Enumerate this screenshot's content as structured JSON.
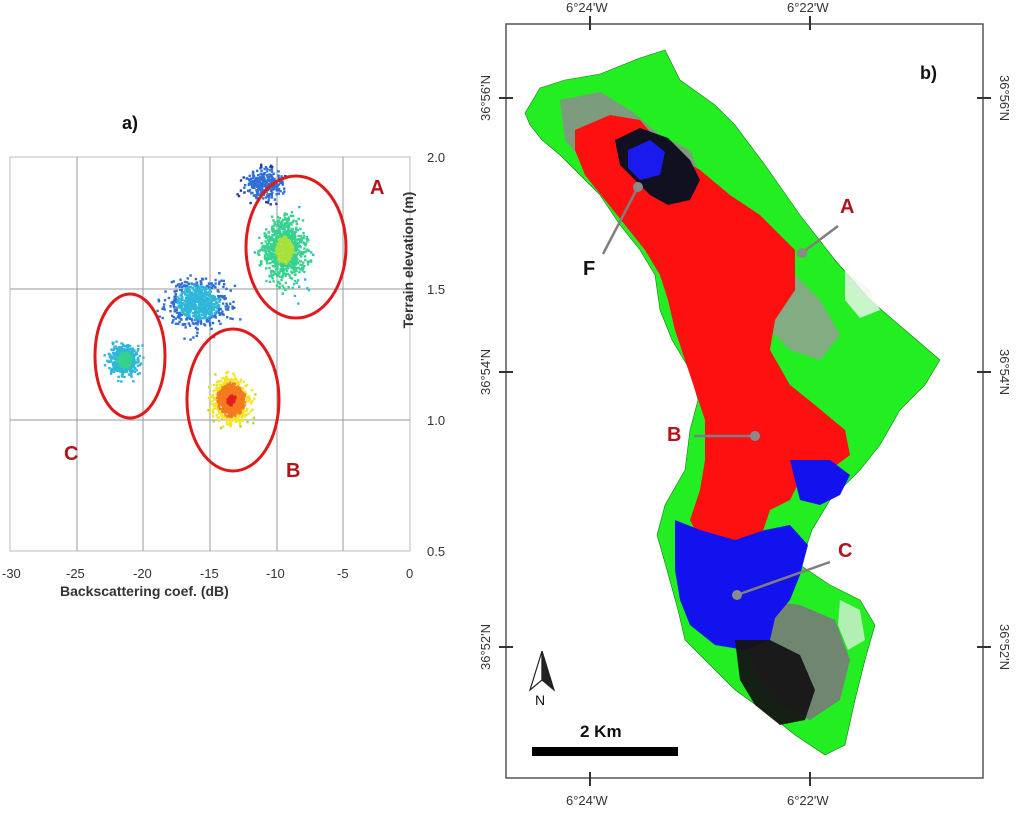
{
  "panel_a": {
    "label": "a)",
    "chart_data": {
      "type": "scatter",
      "title": "",
      "xlabel": "Backscattering coef. (dB)",
      "ylabel": "Terrain elevation (m)",
      "xlim": [
        -30,
        0
      ],
      "ylim": [
        0.5,
        2.0
      ],
      "x_ticks": [
        "-30",
        "-25",
        "-20",
        "-15",
        "-10",
        "-5",
        "0"
      ],
      "y_ticks": [
        "0.5",
        "1.0",
        "1.5",
        "2.0"
      ],
      "grid": true,
      "colormap": "density (blue → green → yellow → red)",
      "clusters": [
        {
          "label": "A",
          "center_x": -9.5,
          "center_y": 1.65
        },
        {
          "label": "B",
          "center_x": -13.5,
          "center_y": 1.08
        },
        {
          "label": "C",
          "center_x": -21.5,
          "center_y": 1.23
        }
      ]
    },
    "cluster_labels": {
      "A": "A",
      "B": "B",
      "C": "C"
    }
  },
  "panel_b": {
    "label": "b)",
    "top_coords": [
      "6°24'W",
      "6°22'W"
    ],
    "bottom_coords": [
      "6°24'W",
      "6°22'W"
    ],
    "left_coords": [
      "36°56'N",
      "36°54'N",
      "36°52'N"
    ],
    "right_coords": [
      "36°56'N",
      "36°54'N",
      "36°52'N"
    ],
    "map_labels": {
      "A": "A",
      "B": "B",
      "C": "C",
      "F": "F"
    },
    "north_label": "N",
    "scale_label": "2 Km",
    "colors": {
      "A": "#22ee22",
      "B": "#ff1010",
      "C": "#1010ee",
      "F": "#0a0a2a"
    }
  },
  "colors": {
    "cluster_red": "#b3141a",
    "ellipse": "#e0191b"
  }
}
